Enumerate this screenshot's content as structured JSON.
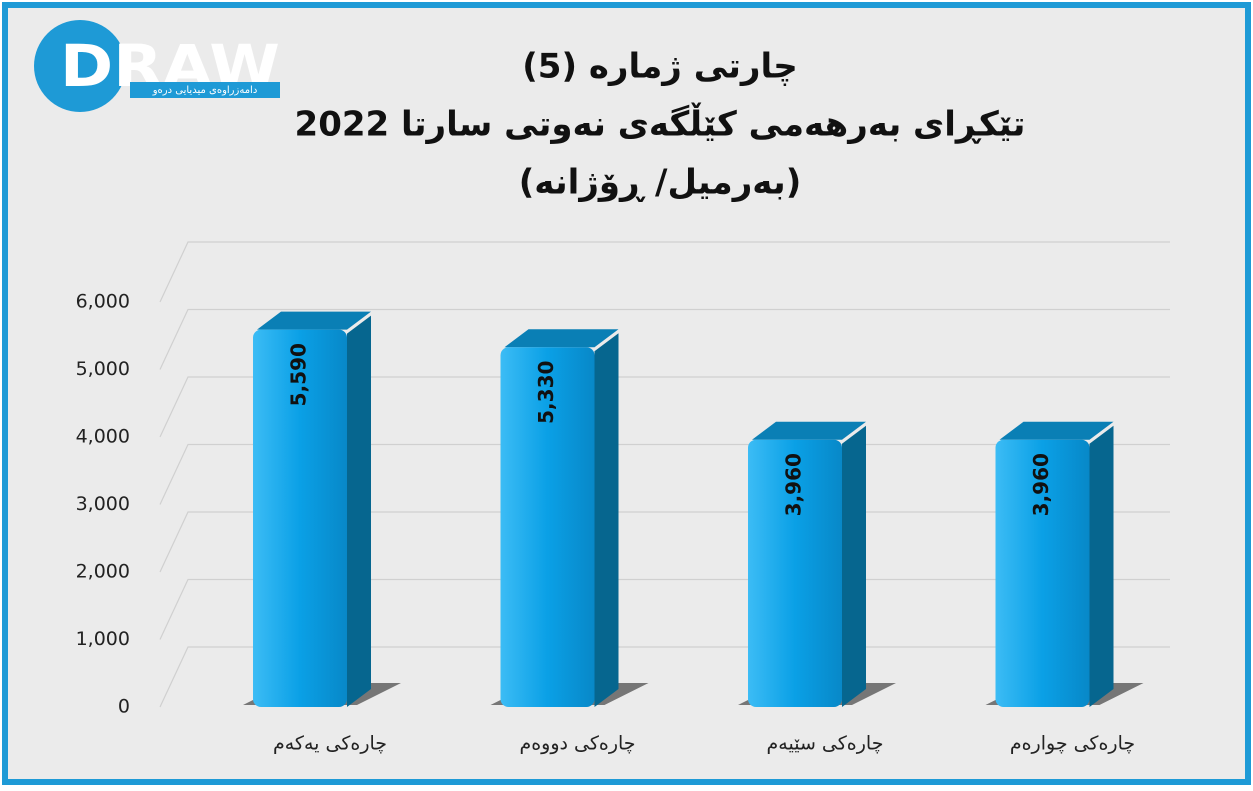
{
  "chart_data": {
    "type": "bar",
    "logo": {
      "text": "DRAW",
      "tagline": "دامەزراوەی میدیایی درەو"
    },
    "title_lines": [
      "چارتی ژمارە (5)",
      "تێکڕای بەرهەمی کێڵگەی نەوتی سارتا 2022",
      "(بەرمیل/ ڕۆژانە)"
    ],
    "categories": [
      "چارەکی یەکەم",
      "چارەکی دووەم",
      "چارەکی سێیەم",
      "چارەکی چوارەم"
    ],
    "values": [
      5590,
      5330,
      3960,
      3960
    ],
    "value_labels": [
      "5,590",
      "5,330",
      "3,960",
      "3,960"
    ],
    "color": "#0aa0e6",
    "ylim": [
      0,
      6000
    ],
    "yticks": [
      0,
      {
        "value": 1000,
        "label": "1,000"
      },
      {
        "value": 2000,
        "label": "2,000"
      },
      {
        "value": 3000,
        "label": "3,000"
      },
      {
        "value": 4000,
        "label": "4,000"
      },
      {
        "value": 5000,
        "label": "5,000"
      },
      {
        "value": 6000,
        "label": "6,000"
      }
    ],
    "grid": true
  }
}
